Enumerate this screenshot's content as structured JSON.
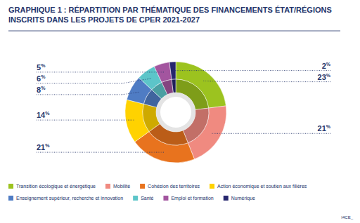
{
  "chart_data": {
    "type": "pie",
    "title": "GRAPHIQUE 1 : RÉPARTITION PAR THÉMATIQUE DES FINANCEMENTS ÉTAT/RÉGIONS INSCRITS DANS LES PROJETS DE CPER 2021-2027",
    "categories": [
      "Transition écologique et énergétique",
      "Mobilité",
      "Cohésion des territoires",
      "Action économique et soutien aux filières",
      "Enseignement supérieur, recherche et innovation",
      "Santé",
      "Emploi et formation",
      "Numérique"
    ],
    "values": [
      23,
      21,
      21,
      14,
      8,
      6,
      5,
      2
    ],
    "value_labels": [
      "23%",
      "21%",
      "21%",
      "14%",
      "8%",
      "6%",
      "5%",
      "2%"
    ],
    "colors": [
      "#9cc31f",
      "#f08a80",
      "#e8731e",
      "#ffd200",
      "#4f7cc4",
      "#5cc5c9",
      "#a3559f",
      "#26266e"
    ],
    "data_labels": true,
    "legend": "bottom",
    "source": "I4CE_"
  }
}
